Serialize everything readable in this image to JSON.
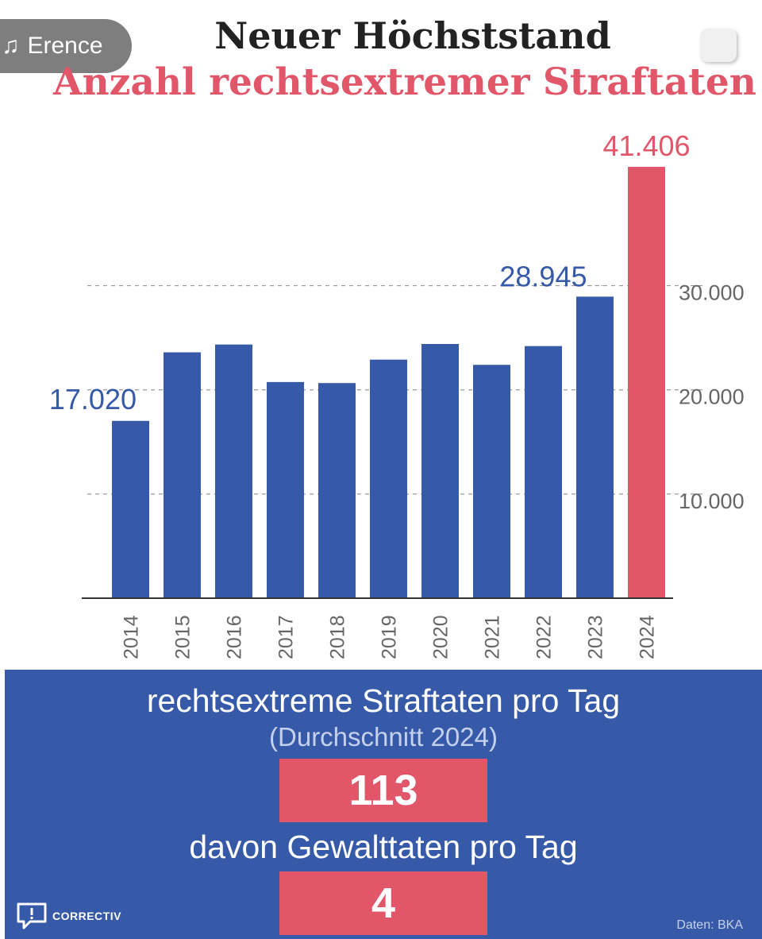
{
  "header": {
    "title": "Neuer Höchststand",
    "subtitle": "Anzahl rechtsextremer Straftaten"
  },
  "overlay": {
    "pill_label": "Erence",
    "pill_icon": "music-note-icon"
  },
  "colors": {
    "bar": "#3659a8",
    "highlight": "#e2566a",
    "panel": "#3659a8"
  },
  "chart_data": {
    "type": "bar",
    "title": "Anzahl rechtsextremer Straftaten",
    "categories": [
      "2014",
      "2015",
      "2016",
      "2017",
      "2018",
      "2019",
      "2020",
      "2021",
      "2022",
      "2023",
      "2024"
    ],
    "values": [
      17020,
      23600,
      24350,
      20750,
      20650,
      22900,
      24400,
      22400,
      24200,
      28945,
      41406
    ],
    "highlight_index": 10,
    "data_labels": [
      {
        "index": 0,
        "text": "17.020"
      },
      {
        "index": 9,
        "text": "28.945"
      },
      {
        "index": 10,
        "text": "41.406"
      }
    ],
    "y_ticks": [
      {
        "value": 10000,
        "label": "10.000"
      },
      {
        "value": 20000,
        "label": "20.000"
      },
      {
        "value": 30000,
        "label": "30.000"
      }
    ],
    "ylim": [
      0,
      42000
    ],
    "grid": "dashed horizontal",
    "y_axis_side": "right"
  },
  "stats": {
    "per_day_label": "rechtsextreme Straftaten pro Tag",
    "per_day_sub": "(Durchschnitt 2024)",
    "per_day_value": "113",
    "violent_label": "davon Gewalttaten pro Tag",
    "violent_value": "4"
  },
  "footer": {
    "brand": "CORRECTIV",
    "source": "Daten: BKA"
  }
}
